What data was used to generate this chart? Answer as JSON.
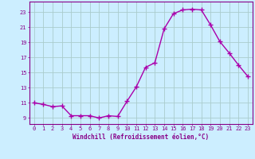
{
  "x": [
    0,
    1,
    2,
    3,
    4,
    5,
    6,
    7,
    8,
    9,
    10,
    11,
    12,
    13,
    14,
    15,
    16,
    17,
    18,
    19,
    20,
    21,
    22,
    23
  ],
  "y": [
    11.0,
    10.8,
    10.5,
    10.6,
    9.3,
    9.3,
    9.3,
    9.0,
    9.3,
    9.2,
    11.2,
    13.1,
    15.7,
    16.3,
    20.8,
    22.8,
    23.3,
    23.4,
    23.3,
    21.3,
    19.1,
    17.6,
    16.0,
    14.5
  ],
  "line_color": "#aa00aa",
  "marker": "D",
  "marker_size": 2.0,
  "bg_color": "#cceeff",
  "grid_color": "#aacccc",
  "xlabel": "Windchill (Refroidissement éolien,°C)",
  "ylabel_ticks": [
    9,
    11,
    13,
    15,
    17,
    19,
    21,
    23
  ],
  "xticks": [
    0,
    1,
    2,
    3,
    4,
    5,
    6,
    7,
    8,
    9,
    10,
    11,
    12,
    13,
    14,
    15,
    16,
    17,
    18,
    19,
    20,
    21,
    22,
    23
  ],
  "ylim": [
    8.2,
    24.4
  ],
  "xlim": [
    -0.5,
    23.5
  ],
  "title_color": "#880088",
  "axis_color": "#880088",
  "tick_color": "#880088",
  "font_family": "monospace",
  "tick_fontsize": 5.0,
  "xlabel_fontsize": 5.5,
  "linewidth": 1.0
}
